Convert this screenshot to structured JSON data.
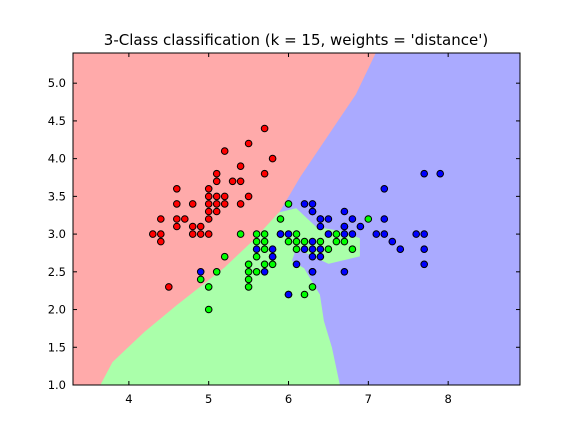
{
  "chart_data": {
    "type": "scatter",
    "title": "3-Class classification (k = 15, weights = 'distance')",
    "xlabel": "",
    "ylabel": "",
    "xlim": [
      3.3,
      8.9
    ],
    "ylim": [
      1.0,
      5.4
    ],
    "x_ticks": [
      "4",
      "5",
      "6",
      "7",
      "8"
    ],
    "y_ticks": [
      "1.0",
      "1.5",
      "2.0",
      "2.5",
      "3.0",
      "3.5",
      "4.0",
      "4.5",
      "5.0"
    ],
    "grid": false,
    "legend": "none",
    "colors": {
      "class_0_region": "#ffaaaa",
      "class_1_region": "#aaffaa",
      "class_2_region": "#aaaaff",
      "class_0_point": "#ff0000",
      "class_1_point": "#00ff00",
      "class_2_point": "#0000ff"
    },
    "decision_regions": {
      "class_0": [
        [
          3.3,
          1.0
        ],
        [
          3.65,
          1.0
        ],
        [
          3.8,
          1.3
        ],
        [
          4.2,
          1.7
        ],
        [
          4.6,
          2.05
        ],
        [
          5.2,
          2.55
        ],
        [
          5.55,
          2.9
        ],
        [
          5.9,
          3.3
        ],
        [
          6.15,
          3.75
        ],
        [
          6.5,
          4.3
        ],
        [
          6.85,
          4.85
        ],
        [
          7.1,
          5.4
        ],
        [
          3.3,
          5.4
        ]
      ],
      "class_2": [
        [
          8.9,
          1.0
        ],
        [
          6.65,
          1.0
        ],
        [
          6.55,
          1.5
        ],
        [
          6.45,
          1.85
        ],
        [
          6.4,
          2.2
        ],
        [
          6.2,
          2.55
        ],
        [
          6.05,
          2.65
        ],
        [
          6.1,
          2.8
        ],
        [
          6.5,
          2.6
        ],
        [
          6.9,
          2.7
        ],
        [
          6.9,
          2.95
        ],
        [
          6.65,
          3.05
        ],
        [
          6.35,
          3.1
        ],
        [
          6.1,
          3.35
        ],
        [
          5.9,
          3.3
        ],
        [
          6.15,
          3.75
        ],
        [
          6.5,
          4.3
        ],
        [
          6.85,
          4.85
        ],
        [
          7.1,
          5.4
        ],
        [
          8.9,
          5.4
        ]
      ],
      "class_1": [
        [
          3.65,
          1.0
        ],
        [
          6.65,
          1.0
        ],
        [
          6.55,
          1.5
        ],
        [
          6.45,
          1.85
        ],
        [
          6.4,
          2.2
        ],
        [
          6.2,
          2.55
        ],
        [
          6.05,
          2.65
        ],
        [
          6.1,
          2.8
        ],
        [
          6.5,
          2.6
        ],
        [
          6.9,
          2.7
        ],
        [
          6.9,
          2.95
        ],
        [
          6.65,
          3.05
        ],
        [
          6.35,
          3.1
        ],
        [
          6.1,
          3.35
        ],
        [
          5.9,
          3.3
        ],
        [
          5.55,
          2.9
        ],
        [
          5.2,
          2.55
        ],
        [
          4.6,
          2.05
        ],
        [
          4.2,
          1.7
        ],
        [
          3.8,
          1.3
        ]
      ]
    },
    "series": [
      {
        "class": 0,
        "points": [
          [
            4.3,
            3.0
          ],
          [
            4.4,
            2.9
          ],
          [
            4.4,
            3.0
          ],
          [
            4.4,
            3.2
          ],
          [
            4.5,
            2.3
          ],
          [
            4.6,
            3.1
          ],
          [
            4.6,
            3.2
          ],
          [
            4.6,
            3.4
          ],
          [
            4.6,
            3.6
          ],
          [
            4.7,
            3.2
          ],
          [
            4.8,
            3.0
          ],
          [
            4.8,
            3.1
          ],
          [
            4.8,
            3.4
          ],
          [
            4.9,
            3.0
          ],
          [
            4.9,
            3.1
          ],
          [
            5.0,
            3.0
          ],
          [
            5.0,
            3.2
          ],
          [
            5.0,
            3.3
          ],
          [
            5.0,
            3.4
          ],
          [
            5.0,
            3.5
          ],
          [
            5.0,
            3.6
          ],
          [
            5.1,
            3.3
          ],
          [
            5.1,
            3.4
          ],
          [
            5.1,
            3.5
          ],
          [
            5.1,
            3.7
          ],
          [
            5.1,
            3.8
          ],
          [
            5.2,
            3.4
          ],
          [
            5.2,
            3.5
          ],
          [
            5.2,
            4.1
          ],
          [
            5.3,
            3.7
          ],
          [
            5.4,
            3.4
          ],
          [
            5.4,
            3.7
          ],
          [
            5.4,
            3.9
          ],
          [
            5.5,
            3.5
          ],
          [
            5.5,
            4.2
          ],
          [
            5.7,
            3.8
          ],
          [
            5.7,
            4.4
          ],
          [
            5.8,
            4.0
          ]
        ]
      },
      {
        "class": 1,
        "points": [
          [
            4.9,
            2.4
          ],
          [
            5.0,
            2.0
          ],
          [
            5.0,
            2.3
          ],
          [
            5.1,
            2.5
          ],
          [
            5.2,
            2.7
          ],
          [
            5.4,
            3.0
          ],
          [
            5.5,
            2.3
          ],
          [
            5.5,
            2.4
          ],
          [
            5.5,
            2.5
          ],
          [
            5.5,
            2.6
          ],
          [
            5.6,
            2.5
          ],
          [
            5.6,
            2.7
          ],
          [
            5.6,
            2.9
          ],
          [
            5.6,
            3.0
          ],
          [
            5.7,
            2.6
          ],
          [
            5.7,
            2.8
          ],
          [
            5.7,
            2.9
          ],
          [
            5.7,
            3.0
          ],
          [
            5.8,
            2.6
          ],
          [
            5.8,
            2.7
          ],
          [
            5.9,
            3.0
          ],
          [
            5.9,
            3.2
          ],
          [
            6.0,
            2.2
          ],
          [
            6.0,
            2.9
          ],
          [
            6.0,
            3.4
          ],
          [
            6.1,
            2.8
          ],
          [
            6.1,
            2.9
          ],
          [
            6.1,
            3.0
          ],
          [
            6.2,
            2.2
          ],
          [
            6.2,
            2.9
          ],
          [
            6.3,
            2.3
          ],
          [
            6.3,
            2.5
          ],
          [
            6.3,
            3.3
          ],
          [
            6.4,
            2.9
          ],
          [
            6.4,
            3.2
          ],
          [
            6.5,
            2.8
          ],
          [
            6.6,
            2.9
          ],
          [
            6.6,
            3.0
          ],
          [
            6.7,
            2.9
          ],
          [
            6.7,
            3.1
          ],
          [
            6.8,
            2.8
          ],
          [
            7.0,
            3.2
          ]
        ]
      },
      {
        "class": 2,
        "points": [
          [
            4.9,
            2.5
          ],
          [
            5.6,
            2.8
          ],
          [
            5.7,
            2.5
          ],
          [
            5.8,
            2.7
          ],
          [
            5.8,
            2.8
          ],
          [
            5.9,
            3.0
          ],
          [
            6.0,
            2.2
          ],
          [
            6.0,
            3.0
          ],
          [
            6.1,
            2.6
          ],
          [
            6.2,
            2.8
          ],
          [
            6.2,
            3.4
          ],
          [
            6.3,
            2.5
          ],
          [
            6.3,
            2.7
          ],
          [
            6.3,
            2.8
          ],
          [
            6.3,
            2.9
          ],
          [
            6.3,
            3.3
          ],
          [
            6.3,
            3.4
          ],
          [
            6.4,
            2.7
          ],
          [
            6.4,
            2.8
          ],
          [
            6.4,
            3.1
          ],
          [
            6.4,
            3.2
          ],
          [
            6.5,
            3.0
          ],
          [
            6.5,
            3.2
          ],
          [
            6.7,
            2.5
          ],
          [
            6.7,
            3.0
          ],
          [
            6.7,
            3.1
          ],
          [
            6.7,
            3.3
          ],
          [
            6.8,
            3.0
          ],
          [
            6.8,
            3.2
          ],
          [
            6.9,
            3.1
          ],
          [
            7.1,
            3.0
          ],
          [
            7.2,
            3.0
          ],
          [
            7.2,
            3.2
          ],
          [
            7.2,
            3.6
          ],
          [
            7.3,
            2.9
          ],
          [
            7.4,
            2.8
          ],
          [
            7.6,
            3.0
          ],
          [
            7.7,
            2.6
          ],
          [
            7.7,
            2.8
          ],
          [
            7.7,
            3.0
          ],
          [
            7.7,
            3.8
          ],
          [
            7.9,
            3.8
          ]
        ]
      }
    ]
  }
}
